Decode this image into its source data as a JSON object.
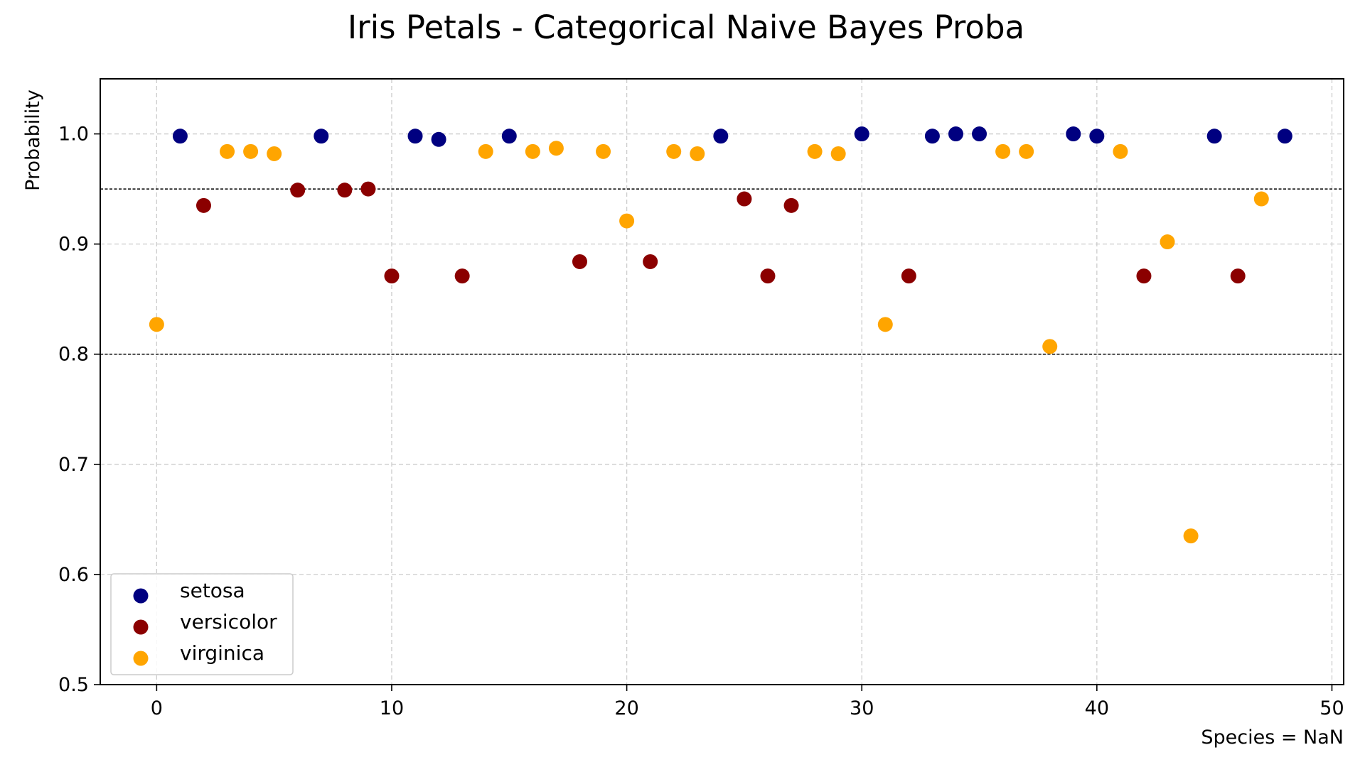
{
  "chart_data": {
    "type": "scatter",
    "title": "Iris Petals - Categorical Naive Bayes Proba",
    "xlabel": "Species = NaN",
    "ylabel": "Probability",
    "xlim": [
      -2.4,
      50.5
    ],
    "ylim": [
      0.5,
      1.05
    ],
    "xticks": [
      0,
      10,
      20,
      30,
      40,
      50
    ],
    "yticks": [
      0.5,
      0.6,
      0.7,
      0.8,
      0.9,
      1.0
    ],
    "xtick_labels": [
      "0",
      "10",
      "20",
      "30",
      "40",
      "50"
    ],
    "ytick_labels": [
      "0.5",
      "0.6",
      "0.7",
      "0.8",
      "0.9",
      "1.0"
    ],
    "grid": true,
    "hlines": [
      0.95,
      0.8
    ],
    "legend_position": "lower-left",
    "series": [
      {
        "name": "setosa",
        "color": "#000080",
        "points": [
          [
            1,
            0.998
          ],
          [
            7,
            0.998
          ],
          [
            11,
            0.998
          ],
          [
            12,
            0.995
          ],
          [
            15,
            0.998
          ],
          [
            24,
            0.998
          ],
          [
            30,
            1.0
          ],
          [
            33,
            0.998
          ],
          [
            34,
            1.0
          ],
          [
            35,
            1.0
          ],
          [
            39,
            1.0
          ],
          [
            40,
            0.998
          ],
          [
            45,
            0.998
          ],
          [
            48,
            0.998
          ]
        ]
      },
      {
        "name": "versicolor",
        "color": "#8b0000",
        "points": [
          [
            2,
            0.935
          ],
          [
            6,
            0.949
          ],
          [
            8,
            0.949
          ],
          [
            9,
            0.95
          ],
          [
            10,
            0.871
          ],
          [
            13,
            0.871
          ],
          [
            18,
            0.884
          ],
          [
            21,
            0.884
          ],
          [
            25,
            0.941
          ],
          [
            26,
            0.871
          ],
          [
            27,
            0.935
          ],
          [
            32,
            0.871
          ],
          [
            42,
            0.871
          ],
          [
            46,
            0.871
          ]
        ]
      },
      {
        "name": "virginica",
        "color": "#ffa500",
        "points": [
          [
            0,
            0.827
          ],
          [
            3,
            0.984
          ],
          [
            4,
            0.984
          ],
          [
            5,
            0.982
          ],
          [
            14,
            0.984
          ],
          [
            16,
            0.984
          ],
          [
            17,
            0.987
          ],
          [
            19,
            0.984
          ],
          [
            20,
            0.921
          ],
          [
            22,
            0.984
          ],
          [
            23,
            0.982
          ],
          [
            28,
            0.984
          ],
          [
            29,
            0.982
          ],
          [
            31,
            0.827
          ],
          [
            36,
            0.984
          ],
          [
            37,
            0.984
          ],
          [
            38,
            0.807
          ],
          [
            41,
            0.984
          ],
          [
            43,
            0.902
          ],
          [
            44,
            0.635
          ],
          [
            47,
            0.941
          ]
        ]
      }
    ]
  }
}
